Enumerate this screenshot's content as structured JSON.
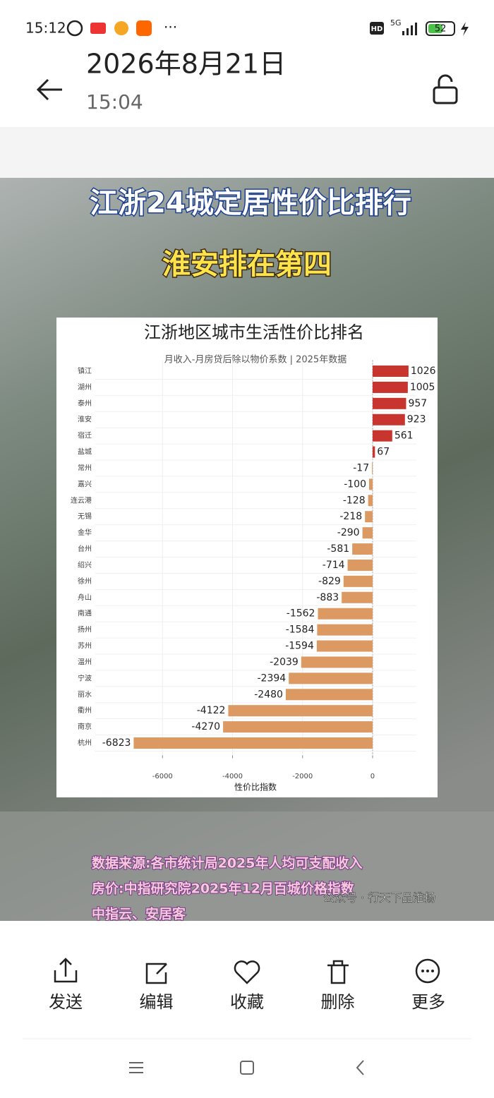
{
  "status_bar": {
    "time": "15:12",
    "network": "5G",
    "hd": "HD",
    "battery": "52"
  },
  "header": {
    "date": "2026年8月21日",
    "time": "15:04"
  },
  "image": {
    "headline": "江浙24城定居性价比排行",
    "subheadline": "淮安排在第四",
    "source_lines": [
      "数据来源:各市统计局2025年人均可支配收入",
      "房价:中指研究院2025年12月百城价格指数",
      "中指云、安居客"
    ],
    "account": "公众号 · 行天下品淮扬"
  },
  "chart_data": {
    "type": "hbar",
    "title": "江浙地区城市生活性价比排名",
    "subtitle": "月收入-月房贷后除以物价系数 | 2025年数据",
    "x_label": "性价比指数",
    "categories": [
      "镇江",
      "湖州",
      "泰州",
      "淮安",
      "宿迁",
      "盐城",
      "常州",
      "嘉兴",
      "连云港",
      "无锡",
      "金华",
      "台州",
      "绍兴",
      "徐州",
      "舟山",
      "南通",
      "扬州",
      "苏州",
      "温州",
      "宁波",
      "丽水",
      "衢州",
      "南京",
      "杭州"
    ],
    "values": [
      1026,
      1005,
      957,
      923,
      561,
      67,
      -17,
      -100,
      -128,
      -218,
      -290,
      -581,
      -714,
      -829,
      -883,
      -1562,
      -1584,
      -1594,
      -2039,
      -2394,
      -2480,
      -4122,
      -4270,
      -6823
    ],
    "color_positive": "#c8352e",
    "color_negative": "#dc9a62",
    "xlim": [
      -7920,
      1250
    ],
    "xticks": [
      -6000,
      -4000,
      -2000,
      0
    ],
    "grid": true
  },
  "toolbar": {
    "actions": [
      "发送",
      "编辑",
      "收藏",
      "删除",
      "更多"
    ]
  }
}
